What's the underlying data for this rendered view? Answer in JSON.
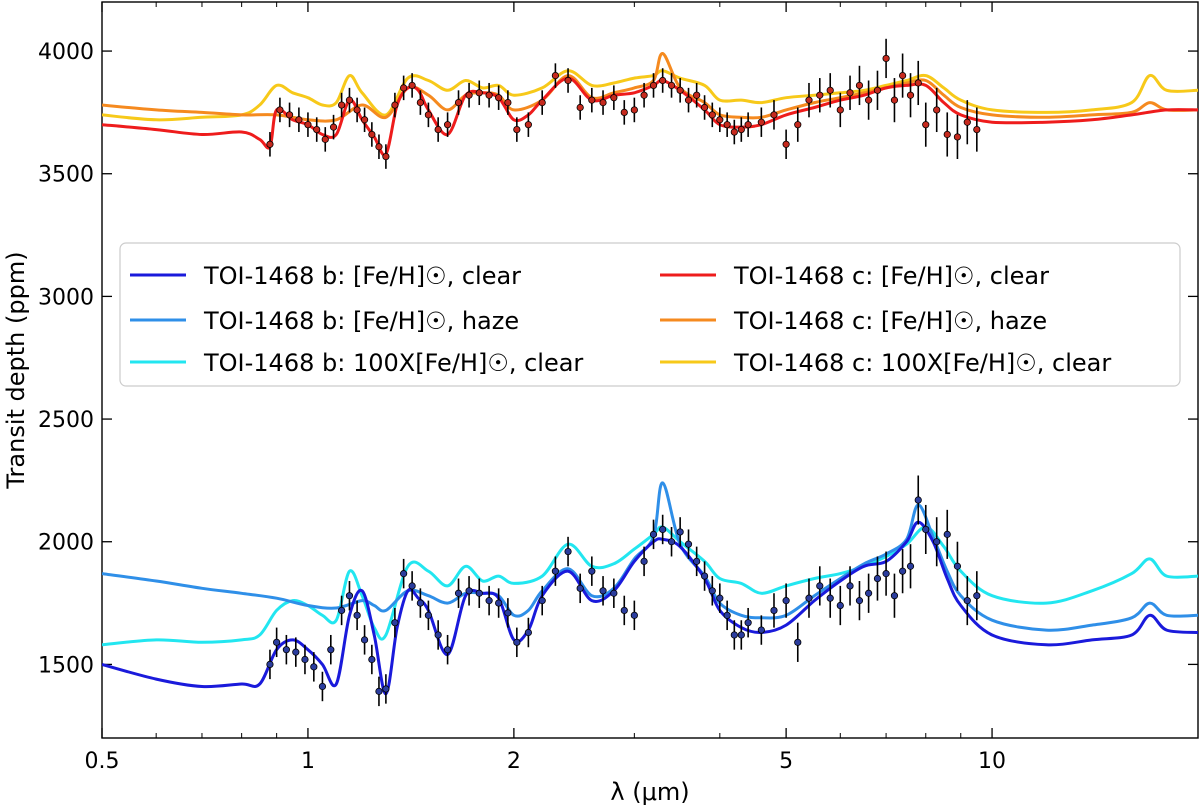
{
  "chart_data": {
    "type": "line",
    "title": "",
    "xlabel": "λ (μm)",
    "ylabel": "Transit depth (ppm)",
    "xscale": "log",
    "xlim": [
      0.5,
      20
    ],
    "ylim": [
      1200,
      4200
    ],
    "xticks": [
      {
        "value": 0.5,
        "label": "0.5"
      },
      {
        "value": 1,
        "label": "1"
      },
      {
        "value": 2,
        "label": "2"
      },
      {
        "value": 5,
        "label": "5"
      },
      {
        "value": 10,
        "label": "10"
      }
    ],
    "yticks": [
      {
        "value": 1500,
        "label": "1500"
      },
      {
        "value": 2000,
        "label": "2000"
      },
      {
        "value": 2500,
        "label": "2500"
      },
      {
        "value": 3000,
        "label": "3000"
      },
      {
        "value": 3500,
        "label": "3500"
      },
      {
        "value": 4000,
        "label": "4000"
      }
    ],
    "legend_position": "center-left",
    "series": [
      {
        "name": "TOI-1468 b: [Fe/H]☉, clear",
        "color": "#1a1adb",
        "planet": "b",
        "x": [
          0.5,
          0.6,
          0.7,
          0.8,
          0.85,
          0.9,
          0.95,
          1.0,
          1.05,
          1.1,
          1.15,
          1.2,
          1.25,
          1.3,
          1.35,
          1.4,
          1.45,
          1.5,
          1.6,
          1.7,
          1.8,
          1.9,
          2.0,
          2.1,
          2.2,
          2.4,
          2.6,
          2.8,
          3.0,
          3.2,
          3.3,
          3.5,
          3.8,
          4.0,
          4.3,
          4.6,
          5.0,
          5.5,
          6.0,
          6.5,
          7.0,
          7.5,
          7.8,
          8.2,
          8.6,
          9.0,
          10,
          12,
          14,
          16,
          17,
          18,
          20
        ],
        "y": [
          1500,
          1440,
          1410,
          1420,
          1420,
          1560,
          1600,
          1560,
          1500,
          1420,
          1700,
          1800,
          1620,
          1380,
          1650,
          1800,
          1770,
          1720,
          1540,
          1780,
          1790,
          1770,
          1600,
          1640,
          1780,
          1880,
          1760,
          1800,
          1920,
          2000,
          2010,
          1980,
          1850,
          1720,
          1650,
          1630,
          1660,
          1760,
          1840,
          1900,
          1920,
          2000,
          2080,
          2000,
          1850,
          1740,
          1620,
          1580,
          1600,
          1620,
          1700,
          1640,
          1630
        ]
      },
      {
        "name": "TOI-1468 b: [Fe/H]☉, haze",
        "color": "#2f8fe8",
        "planet": "b",
        "x": [
          0.5,
          0.6,
          0.7,
          0.8,
          0.9,
          1.0,
          1.1,
          1.2,
          1.25,
          1.3,
          1.4,
          1.5,
          1.6,
          1.7,
          1.8,
          1.9,
          2.0,
          2.1,
          2.2,
          2.4,
          2.6,
          2.8,
          3.0,
          3.2,
          3.3,
          3.5,
          3.8,
          4.0,
          4.3,
          4.6,
          5.0,
          5.5,
          6.0,
          6.5,
          7.0,
          7.5,
          7.8,
          8.2,
          8.6,
          9.0,
          10,
          12,
          14,
          16,
          17,
          18,
          20
        ],
        "y": [
          1870,
          1840,
          1810,
          1790,
          1770,
          1740,
          1730,
          1760,
          1740,
          1720,
          1800,
          1780,
          1750,
          1790,
          1790,
          1780,
          1700,
          1720,
          1800,
          1890,
          1780,
          1810,
          1930,
          2020,
          2240,
          1990,
          1860,
          1750,
          1700,
          1690,
          1700,
          1780,
          1850,
          1910,
          1950,
          2010,
          2150,
          2020,
          1880,
          1780,
          1680,
          1640,
          1660,
          1690,
          1750,
          1700,
          1700
        ]
      },
      {
        "name": "TOI-1468 b: 100X[Fe/H]☉, clear",
        "color": "#22e6f0",
        "planet": "b",
        "x": [
          0.5,
          0.6,
          0.7,
          0.8,
          0.85,
          0.9,
          0.95,
          1.0,
          1.05,
          1.1,
          1.15,
          1.2,
          1.25,
          1.3,
          1.4,
          1.5,
          1.6,
          1.7,
          1.8,
          1.9,
          2.0,
          2.2,
          2.4,
          2.6,
          2.8,
          3.0,
          3.2,
          3.3,
          3.5,
          3.8,
          4.0,
          4.3,
          4.6,
          5.0,
          5.5,
          6.0,
          6.5,
          7.0,
          7.5,
          8.0,
          8.5,
          9.0,
          10,
          12,
          14,
          16,
          17,
          18,
          20
        ],
        "y": [
          1580,
          1600,
          1590,
          1600,
          1620,
          1720,
          1760,
          1740,
          1700,
          1680,
          1880,
          1780,
          1650,
          1620,
          1900,
          1880,
          1820,
          1900,
          1840,
          1860,
          1830,
          1860,
          1990,
          1900,
          1910,
          1970,
          2030,
          2060,
          2000,
          1920,
          1850,
          1830,
          1790,
          1820,
          1850,
          1870,
          1900,
          1940,
          1990,
          2060,
          1980,
          1880,
          1780,
          1750,
          1800,
          1870,
          1930,
          1860,
          1860
        ]
      },
      {
        "name": "TOI-1468 c: [Fe/H]☉, clear",
        "color": "#ee1c1c",
        "planet": "c",
        "x": [
          0.5,
          0.6,
          0.7,
          0.8,
          0.85,
          0.88,
          0.9,
          0.95,
          1.0,
          1.05,
          1.1,
          1.15,
          1.2,
          1.25,
          1.3,
          1.35,
          1.4,
          1.45,
          1.5,
          1.6,
          1.7,
          1.8,
          1.9,
          2.0,
          2.1,
          2.2,
          2.4,
          2.6,
          2.8,
          3.0,
          3.2,
          3.3,
          3.5,
          3.8,
          4.0,
          4.3,
          4.6,
          5.0,
          5.5,
          6.0,
          6.5,
          7.0,
          7.5,
          8.0,
          8.5,
          9.0,
          10,
          12,
          14,
          16,
          18,
          20
        ],
        "y": [
          3700,
          3680,
          3660,
          3670,
          3640,
          3610,
          3760,
          3720,
          3700,
          3660,
          3660,
          3800,
          3720,
          3650,
          3580,
          3780,
          3850,
          3840,
          3760,
          3660,
          3820,
          3830,
          3810,
          3720,
          3740,
          3800,
          3890,
          3800,
          3820,
          3830,
          3860,
          3880,
          3840,
          3760,
          3700,
          3690,
          3700,
          3740,
          3770,
          3800,
          3820,
          3850,
          3860,
          3860,
          3790,
          3740,
          3710,
          3710,
          3720,
          3740,
          3760,
          3760
        ]
      },
      {
        "name": "TOI-1468 c: [Fe/H]☉, haze",
        "color": "#f58a1f",
        "planet": "c",
        "x": [
          0.5,
          0.6,
          0.7,
          0.8,
          0.9,
          1.0,
          1.1,
          1.2,
          1.3,
          1.4,
          1.5,
          1.6,
          1.7,
          1.8,
          1.9,
          2.0,
          2.2,
          2.4,
          2.6,
          2.8,
          3.0,
          3.2,
          3.3,
          3.5,
          3.8,
          4.0,
          4.3,
          4.6,
          5.0,
          5.5,
          6.0,
          6.5,
          7.0,
          7.5,
          8.0,
          8.5,
          9.0,
          10,
          12,
          14,
          16,
          17,
          18,
          20
        ],
        "y": [
          3780,
          3760,
          3750,
          3740,
          3740,
          3720,
          3720,
          3780,
          3730,
          3850,
          3820,
          3760,
          3820,
          3830,
          3820,
          3760,
          3800,
          3900,
          3810,
          3830,
          3850,
          3880,
          3990,
          3850,
          3790,
          3740,
          3730,
          3730,
          3760,
          3790,
          3810,
          3830,
          3850,
          3870,
          3880,
          3820,
          3770,
          3740,
          3730,
          3740,
          3750,
          3790,
          3760,
          3760
        ]
      },
      {
        "name": "TOI-1468 c: 100X[Fe/H]☉, clear",
        "color": "#f7c91a",
        "planet": "c",
        "x": [
          0.5,
          0.6,
          0.7,
          0.8,
          0.85,
          0.9,
          0.95,
          1.0,
          1.05,
          1.1,
          1.15,
          1.2,
          1.3,
          1.4,
          1.5,
          1.6,
          1.7,
          1.8,
          1.9,
          2.0,
          2.2,
          2.4,
          2.6,
          2.8,
          3.0,
          3.2,
          3.3,
          3.5,
          3.8,
          4.0,
          4.3,
          4.6,
          5.0,
          5.5,
          6.0,
          6.5,
          7.0,
          7.5,
          8.0,
          8.5,
          9.0,
          10,
          12,
          14,
          16,
          17,
          18,
          20
        ],
        "y": [
          3740,
          3720,
          3730,
          3740,
          3780,
          3860,
          3830,
          3810,
          3780,
          3790,
          3900,
          3830,
          3740,
          3890,
          3880,
          3840,
          3880,
          3850,
          3860,
          3820,
          3850,
          3920,
          3860,
          3870,
          3890,
          3900,
          3920,
          3890,
          3860,
          3800,
          3800,
          3790,
          3810,
          3820,
          3830,
          3840,
          3860,
          3880,
          3900,
          3850,
          3800,
          3760,
          3750,
          3760,
          3790,
          3900,
          3840,
          3840
        ]
      }
    ],
    "observations": [
      {
        "planet": "b",
        "point_color": "#2b3d9e",
        "x": [
          0.88,
          0.9,
          0.93,
          0.96,
          0.99,
          1.02,
          1.05,
          1.08,
          1.12,
          1.15,
          1.18,
          1.21,
          1.24,
          1.27,
          1.3,
          1.34,
          1.38,
          1.42,
          1.46,
          1.5,
          1.55,
          1.6,
          1.66,
          1.72,
          1.78,
          1.84,
          1.9,
          1.96,
          2.02,
          2.1,
          2.2,
          2.3,
          2.4,
          2.5,
          2.6,
          2.7,
          2.8,
          2.9,
          3.0,
          3.1,
          3.2,
          3.3,
          3.4,
          3.5,
          3.6,
          3.7,
          3.8,
          3.9,
          4.0,
          4.1,
          4.2,
          4.3,
          4.4,
          4.6,
          4.8,
          5.0,
          5.2,
          5.4,
          5.6,
          5.8,
          6.0,
          6.2,
          6.4,
          6.6,
          6.8,
          7.0,
          7.2,
          7.4,
          7.6,
          7.8,
          8.0,
          8.3,
          8.6,
          8.9,
          9.2,
          9.5
        ],
        "y": [
          1500,
          1590,
          1560,
          1550,
          1520,
          1490,
          1410,
          1560,
          1720,
          1780,
          1700,
          1600,
          1520,
          1390,
          1400,
          1670,
          1870,
          1820,
          1750,
          1700,
          1620,
          1560,
          1790,
          1800,
          1790,
          1760,
          1750,
          1710,
          1590,
          1630,
          1760,
          1880,
          1960,
          1810,
          1880,
          1800,
          1790,
          1720,
          1700,
          1920,
          2030,
          2050,
          2000,
          2040,
          1990,
          1920,
          1860,
          1800,
          1770,
          1700,
          1620,
          1620,
          1670,
          1640,
          1720,
          1760,
          1590,
          1770,
          1820,
          1770,
          1740,
          1820,
          1760,
          1790,
          1850,
          1870,
          1780,
          1880,
          1900,
          2170,
          2050,
          2000,
          2030,
          1900,
          1760,
          1780
        ],
        "err": [
          60,
          60,
          60,
          60,
          60,
          60,
          60,
          60,
          60,
          60,
          60,
          60,
          60,
          60,
          60,
          60,
          60,
          60,
          60,
          60,
          60,
          60,
          60,
          60,
          60,
          60,
          60,
          60,
          60,
          60,
          60,
          60,
          60,
          60,
          60,
          60,
          60,
          60,
          60,
          60,
          60,
          60,
          60,
          60,
          60,
          60,
          60,
          60,
          60,
          60,
          60,
          60,
          60,
          60,
          70,
          70,
          80,
          80,
          80,
          80,
          80,
          80,
          80,
          80,
          90,
          90,
          90,
          90,
          90,
          100,
          100,
          100,
          100,
          100,
          100,
          100
        ]
      },
      {
        "planet": "c",
        "point_color": "#c62a1e",
        "x": [
          0.88,
          0.91,
          0.94,
          0.97,
          1.0,
          1.03,
          1.06,
          1.09,
          1.12,
          1.15,
          1.18,
          1.21,
          1.24,
          1.27,
          1.3,
          1.34,
          1.38,
          1.42,
          1.46,
          1.5,
          1.55,
          1.6,
          1.66,
          1.72,
          1.78,
          1.84,
          1.9,
          1.96,
          2.02,
          2.1,
          2.2,
          2.3,
          2.4,
          2.5,
          2.6,
          2.7,
          2.8,
          2.9,
          3.0,
          3.1,
          3.2,
          3.3,
          3.4,
          3.5,
          3.6,
          3.7,
          3.8,
          3.9,
          4.0,
          4.1,
          4.2,
          4.3,
          4.4,
          4.6,
          4.8,
          5.0,
          5.2,
          5.4,
          5.6,
          5.8,
          6.0,
          6.2,
          6.4,
          6.6,
          6.8,
          7.0,
          7.2,
          7.4,
          7.6,
          7.8,
          8.0,
          8.3,
          8.6,
          8.9,
          9.2,
          9.5
        ],
        "y": [
          3620,
          3760,
          3740,
          3720,
          3700,
          3680,
          3640,
          3690,
          3780,
          3800,
          3760,
          3720,
          3660,
          3610,
          3570,
          3780,
          3850,
          3860,
          3790,
          3740,
          3680,
          3700,
          3790,
          3820,
          3830,
          3820,
          3810,
          3790,
          3680,
          3700,
          3790,
          3900,
          3880,
          3770,
          3800,
          3790,
          3810,
          3750,
          3760,
          3820,
          3860,
          3880,
          3860,
          3840,
          3800,
          3820,
          3770,
          3740,
          3720,
          3700,
          3670,
          3680,
          3700,
          3710,
          3740,
          3620,
          3700,
          3800,
          3820,
          3840,
          3760,
          3830,
          3860,
          3800,
          3840,
          3970,
          3800,
          3900,
          3820,
          3870,
          3700,
          3760,
          3660,
          3650,
          3710,
          3680
        ],
        "err": [
          50,
          50,
          50,
          50,
          50,
          50,
          50,
          50,
          50,
          50,
          50,
          50,
          50,
          50,
          50,
          50,
          50,
          50,
          50,
          50,
          50,
          50,
          50,
          50,
          50,
          50,
          50,
          50,
          50,
          50,
          50,
          50,
          50,
          50,
          50,
          50,
          50,
          50,
          50,
          50,
          50,
          50,
          50,
          50,
          50,
          50,
          50,
          50,
          50,
          50,
          50,
          50,
          50,
          60,
          60,
          60,
          70,
          70,
          70,
          70,
          70,
          70,
          80,
          80,
          80,
          80,
          90,
          90,
          90,
          90,
          90,
          90,
          90,
          90,
          90,
          90
        ]
      }
    ]
  }
}
